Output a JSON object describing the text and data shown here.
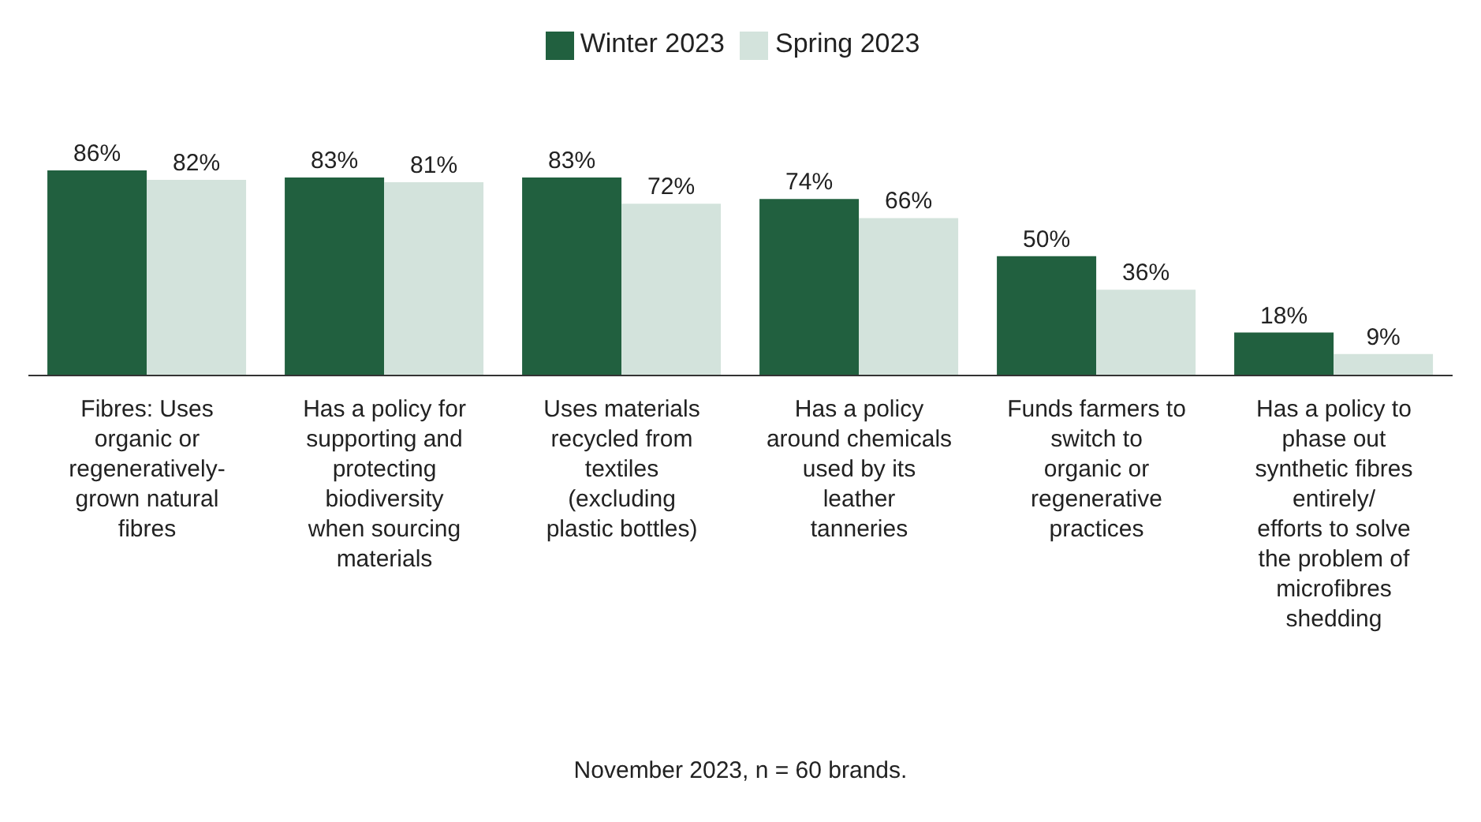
{
  "chart_data": {
    "type": "bar",
    "categories": [
      "Fibres: Uses organic or regeneratively-grown natural fibres",
      "Has a policy for supporting and protecting biodiversity when sourcing materials",
      "Uses materials recycled from textiles (excluding plastic bottles)",
      "Has a policy around chemicals used by its leather tanneries",
      "Funds farmers to switch to organic or regenerative practices",
      "Has a policy to phase out synthetic fibres entirely/ efforts to solve the problem of microfibres shedding"
    ],
    "series": [
      {
        "name": "Winter 2023",
        "color": "#21603f",
        "values": [
          86,
          83,
          83,
          74,
          50,
          18
        ],
        "value_labels": [
          "86%",
          "83%",
          "83%",
          "74%",
          "50%",
          "18%"
        ]
      },
      {
        "name": "Spring 2023",
        "color": "#d3e3dc",
        "values": [
          82,
          81,
          72,
          66,
          36,
          9
        ],
        "value_labels": [
          "82%",
          "81%",
          "72%",
          "66%",
          "36%",
          "9%"
        ]
      }
    ],
    "legend": "top",
    "annotations": [
      "November 2023, n = 60 brands."
    ]
  }
}
